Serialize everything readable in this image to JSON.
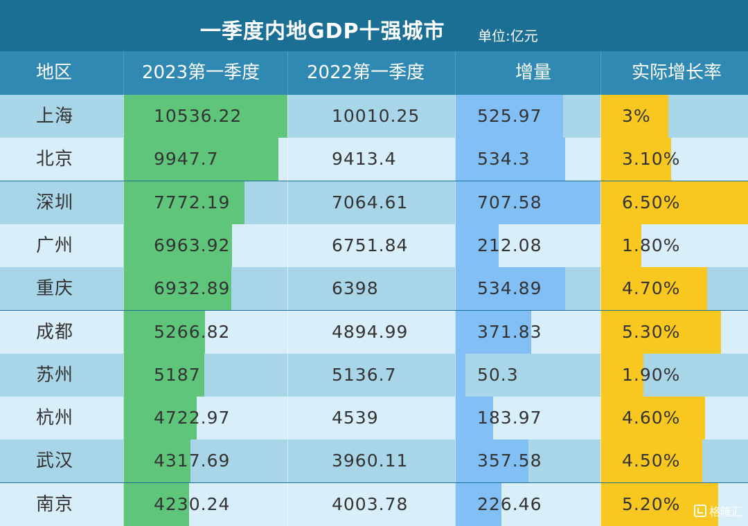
{
  "title": "一季度内地GDP十强城市",
  "unit": "单位:亿元",
  "watermark": "格隆汇",
  "colors": {
    "title_bg": "#1b6f94",
    "header_bg": "#2f89b2",
    "row_odd": "#a8d5e8",
    "row_even": "#d8eef9",
    "bar_2023": "#5ec57a",
    "bar_increase": "#82bff5",
    "bar_growth": "#f8c820"
  },
  "chart_data": {
    "type": "table",
    "title": "一季度内地GDP十强城市",
    "unit": "单位:亿元",
    "columns": [
      "地区",
      "2023第一季度",
      "2022第一季度",
      "增量",
      "实际增长率"
    ],
    "rows": [
      {
        "region": "上海",
        "q1_2023": "10536.22",
        "q1_2022": "10010.25",
        "increase": "525.97",
        "growth": "3%"
      },
      {
        "region": "北京",
        "q1_2023": "9947.7",
        "q1_2022": "9413.4",
        "increase": "534.3",
        "growth": "3.10%"
      },
      {
        "region": "深圳",
        "q1_2023": "7772.19",
        "q1_2022": "7064.61",
        "increase": "707.58",
        "growth": "6.50%"
      },
      {
        "region": "广州",
        "q1_2023": "6963.92",
        "q1_2022": "6751.84",
        "increase": "212.08",
        "growth": "1.80%"
      },
      {
        "region": "重庆",
        "q1_2023": "6932.89",
        "q1_2022": "6398",
        "increase": "534.89",
        "growth": "4.70%"
      },
      {
        "region": "成都",
        "q1_2023": "5266.82",
        "q1_2022": "4894.99",
        "increase": "371.83",
        "growth": "5.30%"
      },
      {
        "region": "苏州",
        "q1_2023": "5187",
        "q1_2022": "5136.7",
        "increase": "50.3",
        "growth": "1.90%"
      },
      {
        "region": "杭州",
        "q1_2023": "4722.97",
        "q1_2022": "4539",
        "increase": "183.97",
        "growth": "4.60%"
      },
      {
        "region": "武汉",
        "q1_2023": "4317.69",
        "q1_2022": "3960.11",
        "increase": "357.58",
        "growth": "4.50%"
      },
      {
        "region": "南京",
        "q1_2023": "4230.24",
        "q1_2022": "4003.78",
        "increase": "226.46",
        "growth": "5.20%"
      }
    ],
    "bar_columns": {
      "q1_2023": {
        "max": 10536.22
      },
      "increase": {
        "max": 707.58
      },
      "growth": {
        "max": 6.5
      }
    }
  }
}
